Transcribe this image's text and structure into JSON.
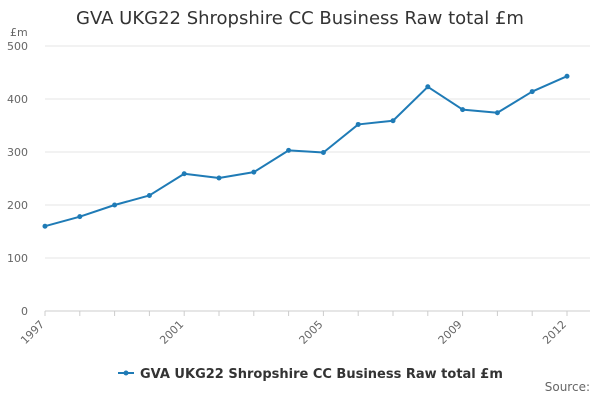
{
  "chart_data": {
    "type": "line",
    "title": "GVA UKG22 Shropshire CC Business Raw total £m",
    "ylabel": "£m",
    "xlabel": "",
    "ylim": [
      0,
      500
    ],
    "yticks": [
      0,
      100,
      200,
      300,
      400,
      500
    ],
    "xlim": [
      1997,
      2012
    ],
    "xtick_labels": [
      "1997",
      "2001",
      "2005",
      "2009",
      "2012"
    ],
    "grid": "horizontal",
    "legend_position": "bottom",
    "series": [
      {
        "name": "GVA UKG22 Shropshire CC Business Raw total £m",
        "color": "#1f7bb6",
        "x": [
          1997,
          1998,
          1999,
          2000,
          2001,
          2002,
          2003,
          2004,
          2005,
          2006,
          2007,
          2008,
          2009,
          2010,
          2011,
          2012
        ],
        "values": [
          160,
          178,
          200,
          218,
          259,
          251,
          262,
          303,
          299,
          352,
          359,
          423,
          380,
          374,
          414,
          443
        ]
      }
    ]
  },
  "footer": {
    "source_label": "Source:"
  }
}
